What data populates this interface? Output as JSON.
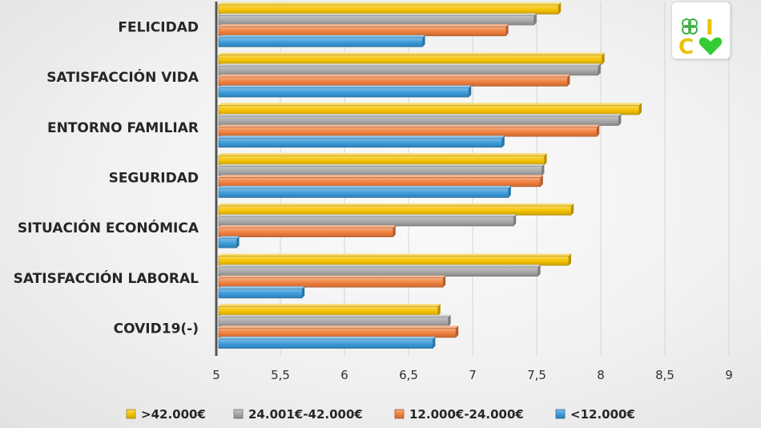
{
  "chart_data": {
    "type": "bar",
    "orientation": "horizontal",
    "categories": [
      "FELICIDAD",
      "SATISFACCIÓN VIDA",
      "ENTORNO FAMILIAR",
      "SEGURIDAD",
      "SITUACIÓN ECONÓMICA",
      "SATISFACCIÓN LABORAL",
      "COVID19(-)"
    ],
    "series": [
      {
        "name": ">42.000€",
        "color": "#f5c200",
        "values": [
          7.67,
          8.01,
          8.3,
          7.56,
          7.77,
          7.75,
          6.73
        ]
      },
      {
        "name": "24.001€-42.000€",
        "color": "#a6a6a6",
        "values": [
          7.48,
          7.98,
          8.14,
          7.54,
          7.32,
          7.51,
          6.81
        ]
      },
      {
        "name": "12.000€-24.000€",
        "color": "#f07f3c",
        "values": [
          7.26,
          7.74,
          7.97,
          7.53,
          6.38,
          6.77,
          6.87
        ]
      },
      {
        "name": "<12.000€",
        "color": "#3a9ad9",
        "values": [
          6.61,
          6.97,
          7.23,
          7.28,
          5.16,
          5.67,
          6.69
        ]
      }
    ],
    "xlim": [
      5,
      9
    ],
    "xticks": [
      "5",
      "5,5",
      "6",
      "6,5",
      "7",
      "7,5",
      "8",
      "8,5",
      "9"
    ],
    "grid": true,
    "legend_position": "bottom",
    "title": "",
    "xlabel": "",
    "ylabel": ""
  },
  "logo": {
    "name": "clover-heart-logo",
    "letters": [
      "C",
      "I"
    ],
    "colors": {
      "letters": "#e8c200",
      "clover": "#3cb043",
      "heart": "#33cc33"
    }
  }
}
